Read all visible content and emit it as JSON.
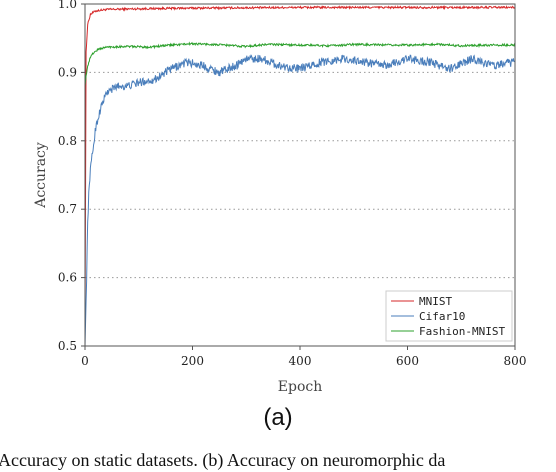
{
  "chart_data": {
    "type": "line",
    "xlabel": "Epoch",
    "ylabel": "Accuracy",
    "xlim": [
      0,
      800
    ],
    "ylim": [
      0.5,
      1.0
    ],
    "xticks": [
      0,
      200,
      400,
      600,
      800
    ],
    "yticks": [
      0.5,
      0.6,
      0.7,
      0.8,
      0.9,
      1.0
    ],
    "ytick_labels": [
      "0.5",
      "0.6",
      "0.7",
      "0.8",
      "0.9",
      "1.0"
    ],
    "grid": "horizontal dotted",
    "legend_position": "lower-right",
    "series": [
      {
        "name": "MNIST",
        "color": "#d62728",
        "x": [
          0,
          2,
          5,
          10,
          20,
          40,
          100,
          200,
          400,
          600,
          800
        ],
        "y": [
          0.52,
          0.93,
          0.97,
          0.985,
          0.99,
          0.992,
          0.993,
          0.994,
          0.995,
          0.995,
          0.995
        ],
        "noise": 0.0015
      },
      {
        "name": "Cifar10",
        "color": "#4a7ebb",
        "x": [
          0,
          3,
          5,
          8,
          12,
          20,
          30,
          40,
          60,
          80,
          100,
          130,
          160,
          190,
          220,
          250,
          280,
          300,
          330,
          360,
          400,
          440,
          480,
          520,
          560,
          600,
          640,
          680,
          720,
          760,
          800
        ],
        "y": [
          0.5,
          0.6,
          0.68,
          0.74,
          0.77,
          0.82,
          0.85,
          0.87,
          0.88,
          0.88,
          0.885,
          0.89,
          0.905,
          0.915,
          0.91,
          0.9,
          0.91,
          0.92,
          0.92,
          0.91,
          0.905,
          0.915,
          0.92,
          0.915,
          0.91,
          0.92,
          0.915,
          0.905,
          0.92,
          0.91,
          0.915
        ],
        "noise": 0.006
      },
      {
        "name": "Fashion-MNIST",
        "color": "#2ca02c",
        "x": [
          0,
          2,
          4,
          7,
          10,
          15,
          25,
          40,
          80,
          120,
          160,
          200,
          260,
          300,
          340,
          400,
          460,
          500,
          560,
          600,
          660,
          700,
          760,
          800
        ],
        "y": [
          0.88,
          0.895,
          0.905,
          0.915,
          0.922,
          0.928,
          0.934,
          0.937,
          0.938,
          0.937,
          0.94,
          0.942,
          0.94,
          0.938,
          0.941,
          0.94,
          0.939,
          0.941,
          0.94,
          0.94,
          0.941,
          0.939,
          0.94,
          0.94
        ],
        "noise": 0.0015
      }
    ]
  },
  "figure": {
    "panel_label": "(a)",
    "caption": "Accuracy on static datasets. (b) Accuracy on neuromorphic da"
  }
}
